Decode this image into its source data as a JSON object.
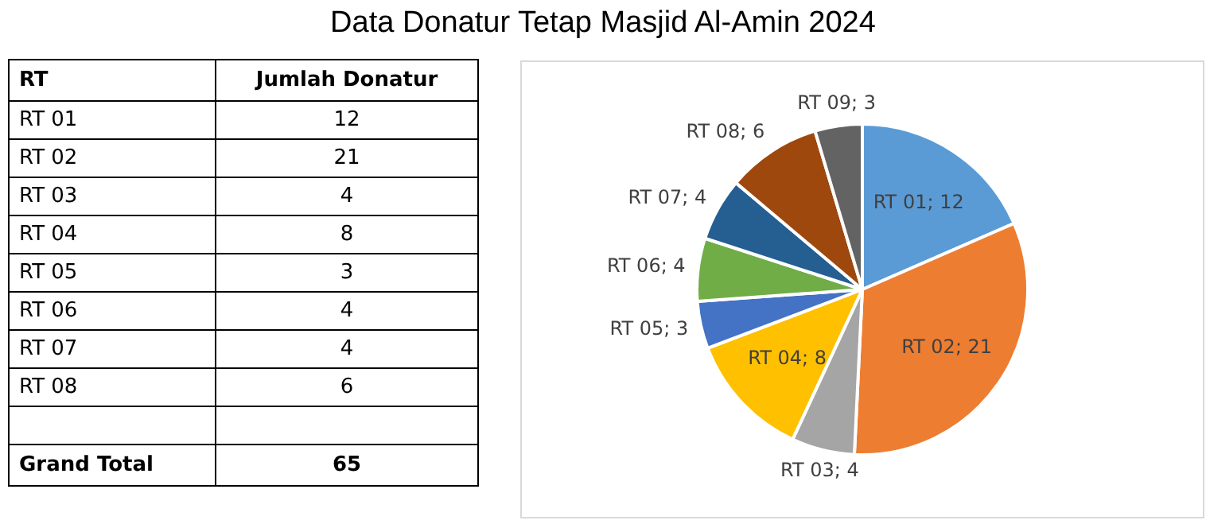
{
  "chart_data": [
    {
      "type": "other",
      "annotations": [
        "RT",
        "Jumlah Donatur",
        "RT 01",
        "12",
        "RT 02",
        "21",
        "RT 03",
        "4",
        "RT 04",
        "8",
        "RT 05",
        "3",
        "RT 06",
        "4",
        "RT 07",
        "4",
        "RT 08",
        "6",
        "Grand Total",
        "65"
      ]
    },
    {
      "type": "pie",
      "title": "Data Donatur Tetap Masjid Al-Amin 2024",
      "categories": [
        "RT 01",
        "RT 02",
        "RT 03",
        "RT 04",
        "RT 05",
        "RT 06",
        "RT 07",
        "RT 08",
        "RT 09"
      ],
      "values": [
        12,
        21,
        4,
        8,
        3,
        4,
        4,
        6,
        3
      ],
      "data_labels": true,
      "annotations": [
        ";"
      ],
      "colors": [
        "#5b9bd5",
        "#ed7d31",
        "#a5a5a5",
        "#ffc000",
        "#4472c4",
        "#70ad47",
        "#255e91",
        "#9e480e",
        "#636363"
      ],
      "legend": false
    }
  ]
}
